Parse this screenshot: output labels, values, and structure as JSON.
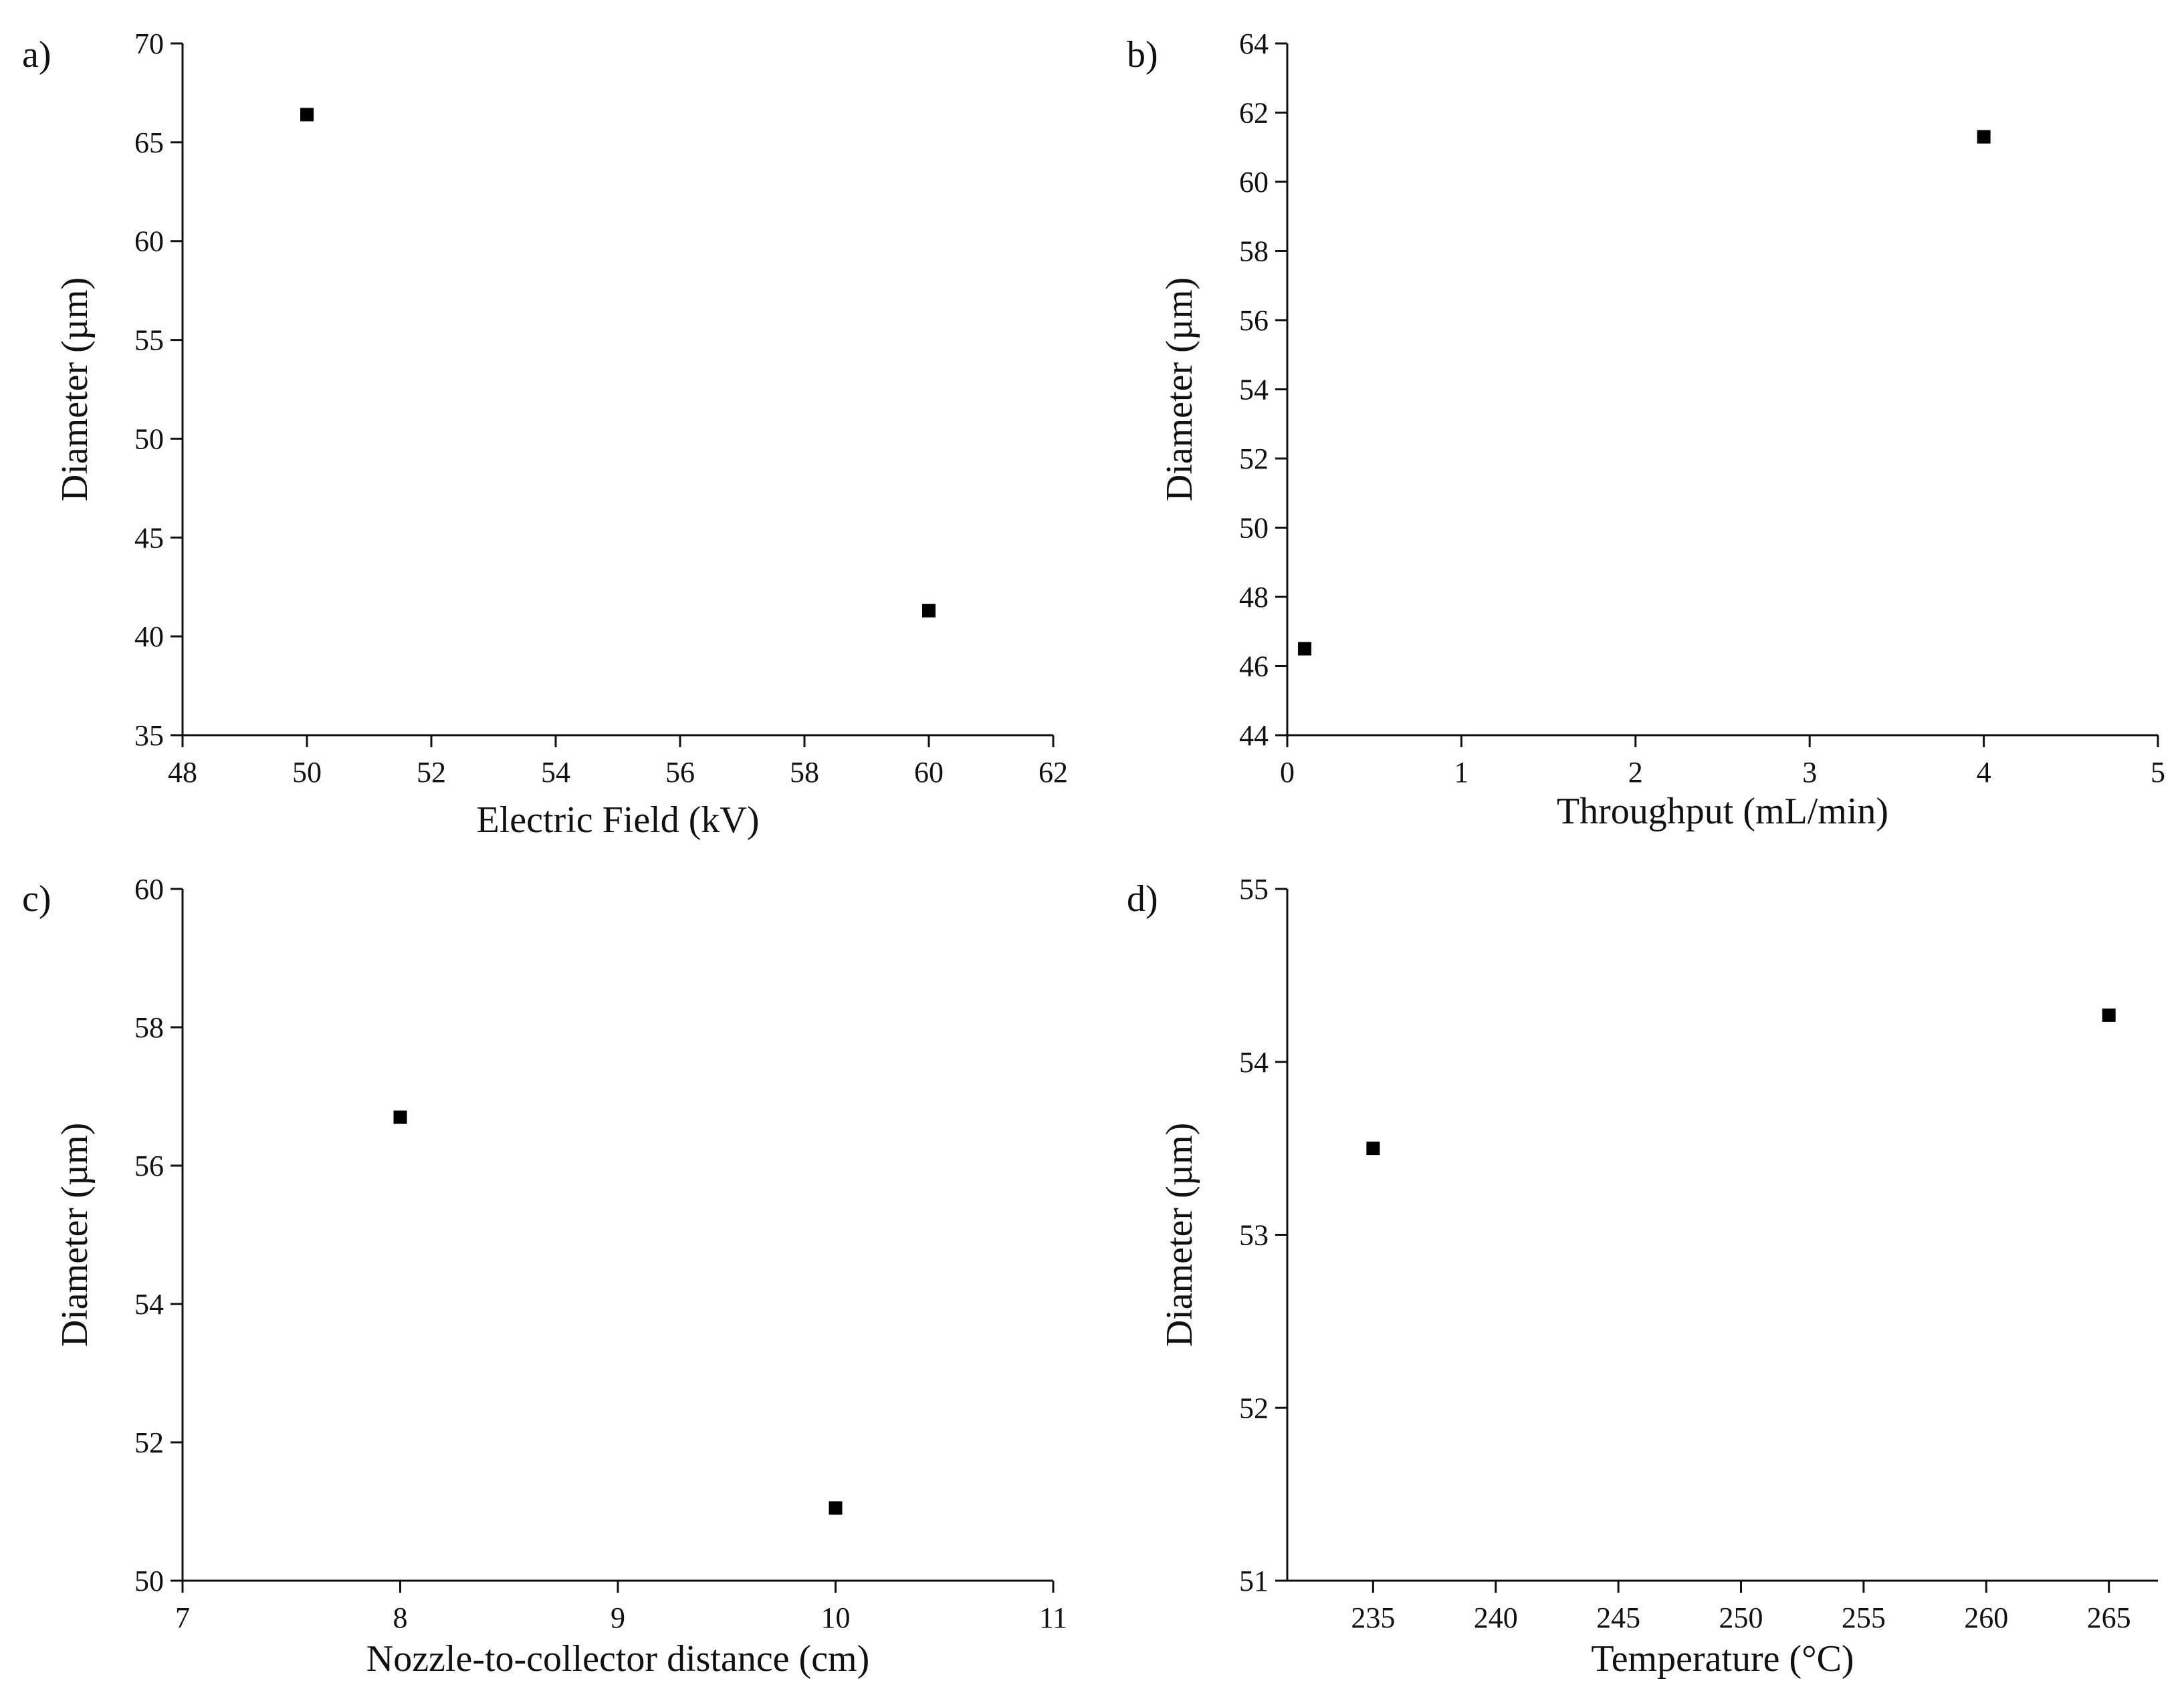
{
  "chart_data": [
    {
      "type": "scatter",
      "panel": "a)",
      "xlabel": "Electric Field (kV)",
      "ylabel": "Diameter (µm)",
      "xlim": [
        48,
        62
      ],
      "ylim": [
        35,
        70
      ],
      "xticks": [
        48,
        50,
        52,
        54,
        56,
        58,
        60,
        62
      ],
      "yticks": [
        35,
        40,
        45,
        50,
        55,
        60,
        65,
        70
      ],
      "points": [
        {
          "x": 50,
          "y": 66.4
        },
        {
          "x": 60,
          "y": 41.3
        }
      ],
      "marker_color": "#000000"
    },
    {
      "type": "scatter",
      "panel": "b)",
      "xlabel": "Throughput (mL/min)",
      "ylabel": "Diameter (µm)",
      "xlim": [
        0,
        5
      ],
      "ylim": [
        44,
        64
      ],
      "xticks": [
        0,
        1,
        2,
        3,
        4,
        5
      ],
      "yticks": [
        44,
        46,
        48,
        50,
        52,
        54,
        56,
        58,
        60,
        62,
        64
      ],
      "points": [
        {
          "x": 0.1,
          "y": 46.5
        },
        {
          "x": 4,
          "y": 61.3
        }
      ],
      "marker_color": "#000000"
    },
    {
      "type": "scatter",
      "panel": "c)",
      "xlabel": "Nozzle-to-collector distance (cm)",
      "ylabel": "Diameter (µm)",
      "xlim": [
        7,
        11
      ],
      "ylim": [
        50,
        60
      ],
      "xticks": [
        7,
        8,
        9,
        10,
        11
      ],
      "yticks": [
        50,
        52,
        54,
        56,
        58,
        60
      ],
      "points": [
        {
          "x": 8,
          "y": 56.7
        },
        {
          "x": 10,
          "y": 51.05
        }
      ],
      "marker_color": "#000000"
    },
    {
      "type": "scatter",
      "panel": "d)",
      "xlabel": "Temperature (°C)",
      "ylabel": "Diameter (µm)",
      "xlim": [
        231.5,
        267
      ],
      "ylim": [
        51,
        55
      ],
      "xticks": [
        235,
        240,
        245,
        250,
        255,
        260,
        265
      ],
      "yticks": [
        51,
        52,
        53,
        54,
        55
      ],
      "points": [
        {
          "x": 235,
          "y": 53.5
        },
        {
          "x": 265,
          "y": 54.27
        }
      ],
      "marker_color": "#000000"
    }
  ]
}
